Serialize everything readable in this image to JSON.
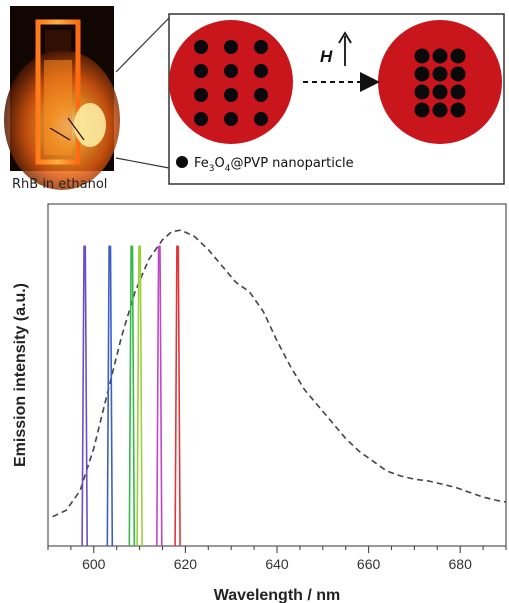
{
  "inset": {
    "photo_caption": "RhB in ethanol",
    "field_label": "H",
    "legend": {
      "prefix": "Fe",
      "sub1": "3",
      "mid": "O",
      "sub2": "4",
      "suffix": "@PVP nanoparticle"
    },
    "particle_color": "#c8161c",
    "nanoparticle_color": "#0a0a0a",
    "arrangement_before": "4 rows × 3 columns, spread out",
    "arrangement_after": "4 rows × 3 columns, packed together"
  },
  "chart_data": {
    "type": "line",
    "xlabel": "Wavelength / nm",
    "ylabel": "Emission intensity (a.u.)",
    "xlim": [
      590,
      690
    ],
    "ylim": [
      0,
      1.05
    ],
    "x_ticks": [
      600,
      620,
      640,
      660,
      680
    ],
    "grid": false,
    "series": [
      {
        "style": "dashed",
        "color": "#444444",
        "points": [
          [
            591,
            0.09
          ],
          [
            594,
            0.11
          ],
          [
            597,
            0.17
          ],
          [
            600,
            0.3
          ],
          [
            603,
            0.47
          ],
          [
            606,
            0.64
          ],
          [
            609,
            0.78
          ],
          [
            612,
            0.88
          ],
          [
            615,
            0.94
          ],
          [
            617,
            0.965
          ],
          [
            619,
            0.97
          ],
          [
            622,
            0.95
          ],
          [
            625,
            0.91
          ],
          [
            628,
            0.86
          ],
          [
            631,
            0.81
          ],
          [
            634,
            0.78
          ],
          [
            637,
            0.72
          ],
          [
            640,
            0.63
          ],
          [
            643,
            0.55
          ],
          [
            646,
            0.48
          ],
          [
            649,
            0.43
          ],
          [
            652,
            0.38
          ],
          [
            655,
            0.33
          ],
          [
            658,
            0.29
          ],
          [
            661,
            0.26
          ],
          [
            664,
            0.23
          ],
          [
            667,
            0.215
          ],
          [
            670,
            0.205
          ],
          [
            673,
            0.2
          ],
          [
            676,
            0.19
          ],
          [
            679,
            0.18
          ],
          [
            682,
            0.165
          ],
          [
            685,
            0.15
          ],
          [
            688,
            0.14
          ],
          [
            690,
            0.135
          ]
        ]
      },
      {
        "style": "peak",
        "color": "#6a4fc4",
        "center": 598,
        "height": 0.92
      },
      {
        "style": "peak",
        "color": "#3b5fc4",
        "center": 603.5,
        "height": 0.92
      },
      {
        "style": "peak",
        "color": "#35b84a",
        "center": 608.3,
        "height": 0.92
      },
      {
        "style": "peak",
        "color": "#9ccf3c",
        "center": 610,
        "height": 0.92
      },
      {
        "style": "peak",
        "color": "#c246c8",
        "center": 614.3,
        "height": 0.92
      },
      {
        "style": "peak",
        "color": "#e0363a",
        "center": 618.3,
        "height": 0.92
      }
    ]
  }
}
